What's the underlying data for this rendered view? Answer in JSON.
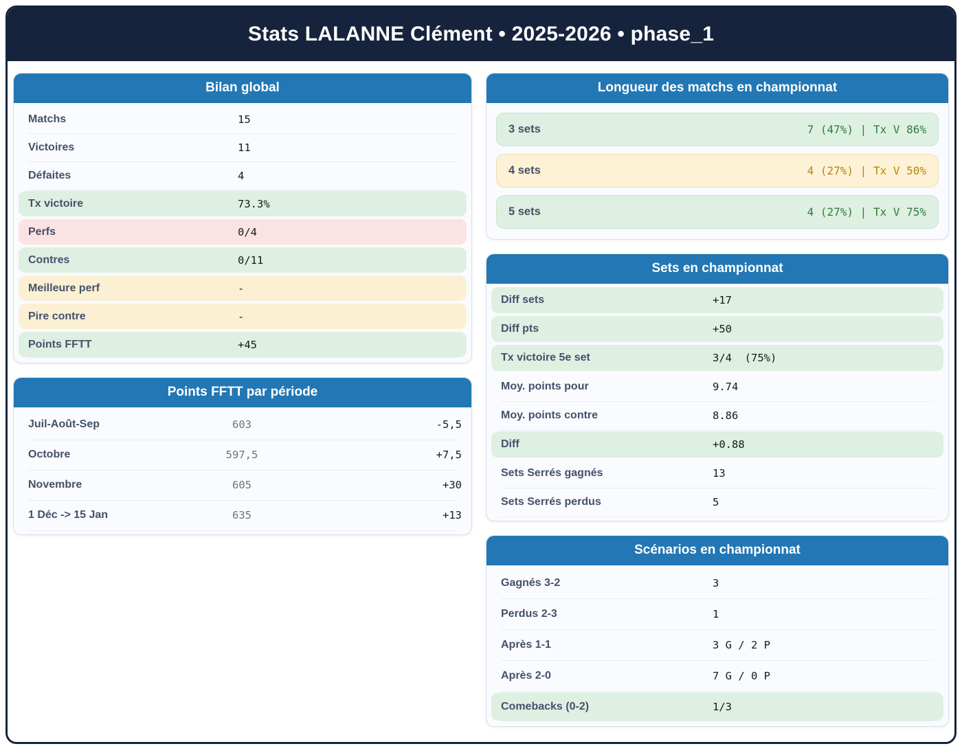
{
  "header": {
    "title": "Stats LALANNE Clément • 2025-2026 • phase_1"
  },
  "colors": {
    "navy": "#16233d",
    "card_header_blue": "#2277b4",
    "green_bg": "#def0e2",
    "yellow_bg": "#fcf0d4",
    "red_bg": "#fce3e3",
    "green_text": "#2e7d3c",
    "yellow_text": "#b8860b",
    "label_text": "#44516b"
  },
  "bilan": {
    "title": "Bilan global",
    "rows": [
      {
        "label": "Matchs",
        "value": "15"
      },
      {
        "label": "Victoires",
        "value": "11"
      },
      {
        "label": "Défaites",
        "value": "4"
      },
      {
        "label": "Tx victoire",
        "value": "73.3%"
      },
      {
        "label": "Perfs",
        "value": "0/4"
      },
      {
        "label": "Contres",
        "value": "0/11"
      },
      {
        "label": "Meilleure perf",
        "value": "-"
      },
      {
        "label": "Pire contre",
        "value": "-"
      },
      {
        "label": "Points FFTT",
        "value": "+45"
      }
    ]
  },
  "points_fftt": {
    "title": "Points FFTT par période",
    "rows": [
      {
        "label": "Juil-Août-Sep",
        "points": "603",
        "delta": "-5,5"
      },
      {
        "label": "Octobre",
        "points": "597,5",
        "delta": "+7,5"
      },
      {
        "label": "Novembre",
        "points": "605",
        "delta": "+30"
      },
      {
        "label": "1 Déc -> 15 Jan",
        "points": "635",
        "delta": "+13"
      }
    ]
  },
  "longueur": {
    "title": "Longueur des matchs en championnat",
    "rows": [
      {
        "label": "3 sets",
        "value": "7 (47%) | Tx V 86%",
        "tone": "green"
      },
      {
        "label": "4 sets",
        "value": "4 (27%) | Tx V 50%",
        "tone": "yellow"
      },
      {
        "label": "5 sets",
        "value": "4 (27%) | Tx V 75%",
        "tone": "green"
      }
    ]
  },
  "sets": {
    "title": "Sets en championnat",
    "rows": [
      {
        "label": "Diff sets",
        "value": "+17"
      },
      {
        "label": "Diff pts",
        "value": "+50"
      },
      {
        "label": "Tx victoire 5e set",
        "value": "3/4  (75%)"
      },
      {
        "label": "Moy. points pour",
        "value": "9.74"
      },
      {
        "label": "Moy. points contre",
        "value": "8.86"
      },
      {
        "label": "Diff",
        "value": "+0.88"
      },
      {
        "label": "Sets Serrés gagnés",
        "value": "13"
      },
      {
        "label": "Sets Serrés perdus",
        "value": "5"
      }
    ]
  },
  "scenarios": {
    "title": "Scénarios en championnat",
    "rows": [
      {
        "label": "Gagnés 3-2",
        "value": "3"
      },
      {
        "label": "Perdus 2-3",
        "value": "1"
      },
      {
        "label": "Après 1-1",
        "value": "3 G / 2 P"
      },
      {
        "label": "Après 2-0",
        "value": "7 G / 0 P"
      },
      {
        "label": "Comebacks (0-2)",
        "value": "1/3"
      }
    ]
  }
}
